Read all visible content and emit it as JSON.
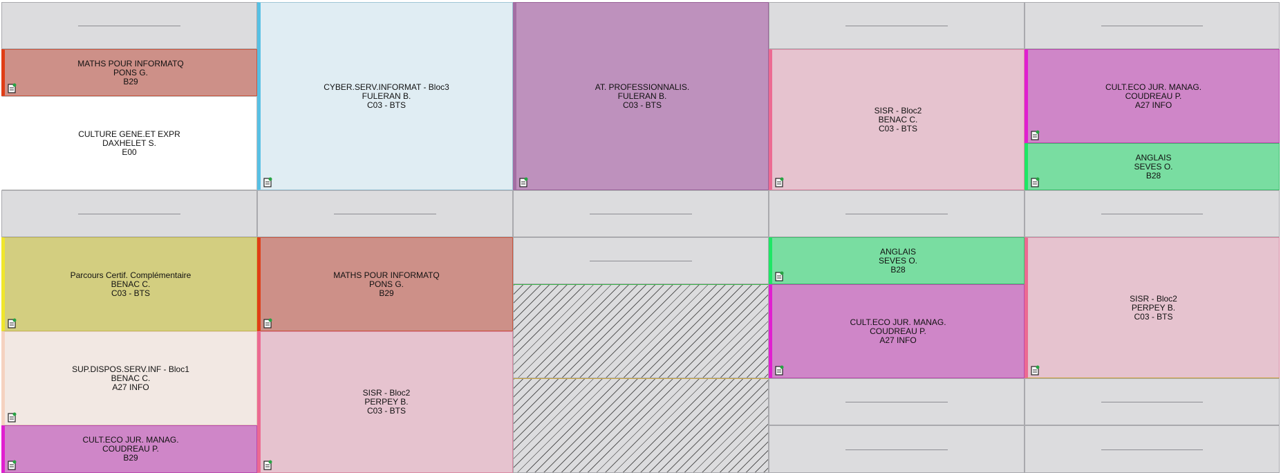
{
  "colors": {
    "maths": "#cd9088",
    "cyber": "#e0edf3",
    "atpro": "#be91bd",
    "sisr": "#e6c3cf",
    "culteco": "#cf86c8",
    "anglais": "#79dda1",
    "culture": "#ffffff",
    "parcours": "#d3ce80",
    "supdispos": "#f2e8e3",
    "empty": "#dcdcde"
  },
  "courses": {
    "c1": {
      "subject": "MATHS POUR INFORMATQ",
      "teacher": "PONS G.",
      "room": "B29"
    },
    "c2": {
      "subject": "CULTURE GENE.ET EXPR",
      "teacher": "DAXHELET S.",
      "room": "E00"
    },
    "c3": {
      "subject": "CYBER.SERV.INFORMAT - Bloc3",
      "teacher": "FULERAN B.",
      "room": "C03 - BTS"
    },
    "c4": {
      "subject": "AT. PROFESSIONNALIS.",
      "teacher": "FULERAN B.",
      "room": "C03 - BTS"
    },
    "c5": {
      "subject": "SISR - Bloc2",
      "teacher": "BENAC C.",
      "room": "C03 - BTS"
    },
    "c6": {
      "subject": "CULT.ECO JUR. MANAG.",
      "teacher": "COUDREAU P.",
      "room": "A27 INFO"
    },
    "c7": {
      "subject": "ANGLAIS",
      "teacher": "SEVES O.",
      "room": "B28"
    },
    "c8": {
      "subject": "Parcours Certif. Complémentaire",
      "teacher": "BENAC C.",
      "room": "C03 - BTS"
    },
    "c9": {
      "subject": "SUP.DISPOS.SERV.INF - Bloc1",
      "teacher": "BENAC C.",
      "room": "A27 INFO"
    },
    "c10": {
      "subject": "CULT.ECO JUR. MANAG.",
      "teacher": "COUDREAU P.",
      "room": "B29"
    },
    "c11": {
      "subject": "MATHS POUR INFORMATQ",
      "teacher": "PONS G.",
      "room": "B29"
    },
    "c12": {
      "subject": "SISR - Bloc2",
      "teacher": "PERPEY B.",
      "room": "C03 - BTS"
    },
    "c13": {
      "subject": "ANGLAIS",
      "teacher": "SEVES O.",
      "room": "B28"
    },
    "c14": {
      "subject": "CULT.ECO JUR. MANAG.",
      "teacher": "COUDREAU P.",
      "room": "A27 INFO"
    },
    "c15": {
      "subject": "SISR - Bloc2",
      "teacher": "PERPEY B.",
      "room": "C03 - BTS"
    }
  }
}
